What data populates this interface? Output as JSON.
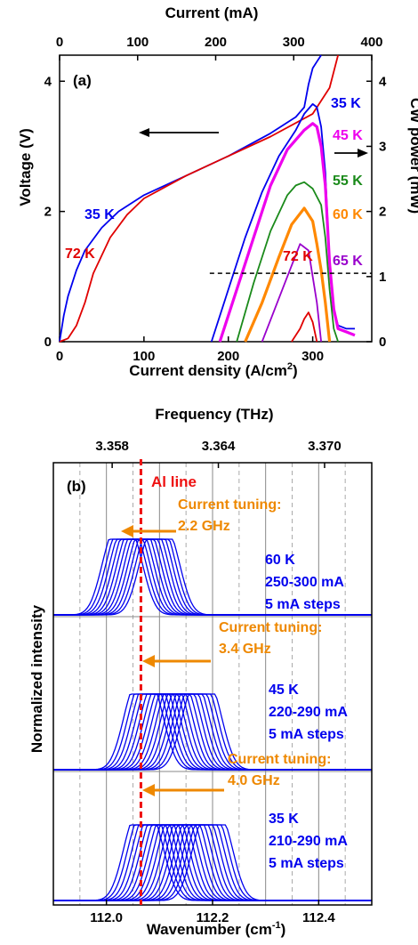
{
  "chart_data": [
    {
      "panel": "(a)",
      "type": "line",
      "top_axis": {
        "label": "Current (mA)",
        "ticks": [
          "0",
          "100",
          "200",
          "300",
          "400"
        ],
        "range": [
          0,
          400
        ]
      },
      "x_axis": {
        "label_main": "Current density  (A/cm",
        "label_sup": "2",
        "label_tail": ")",
        "ticks": [
          "0",
          "100",
          "200",
          "300"
        ],
        "range": [
          0,
          370
        ]
      },
      "y_left": {
        "label": "Voltage (V)",
        "ticks": [
          "0",
          "2",
          "4"
        ],
        "range": [
          0,
          4.4
        ]
      },
      "y_right": {
        "label": "CW power (mW)",
        "ticks": [
          "0",
          "1",
          "2",
          "3",
          "4"
        ],
        "range": [
          0,
          4.4
        ]
      },
      "voltage_series": [
        {
          "name": "35 K",
          "color": "#0000ee",
          "x": [
            0,
            5,
            10,
            20,
            30,
            50,
            70,
            100,
            150,
            200,
            250,
            280,
            290,
            295,
            300,
            305,
            310
          ],
          "y": [
            0,
            0.4,
            0.7,
            1.1,
            1.4,
            1.75,
            2.0,
            2.25,
            2.55,
            2.85,
            3.2,
            3.45,
            3.6,
            3.95,
            4.2,
            4.3,
            4.4
          ]
        },
        {
          "name": "72 K",
          "color": "#e00000",
          "x": [
            0,
            10,
            20,
            30,
            40,
            60,
            80,
            100,
            150,
            200,
            250,
            300,
            320,
            330
          ],
          "y": [
            0,
            0.05,
            0.25,
            0.6,
            1.05,
            1.6,
            1.95,
            2.2,
            2.55,
            2.85,
            3.15,
            3.5,
            3.9,
            4.4
          ]
        }
      ],
      "power_series": [
        {
          "name": "35 K",
          "color": "#0000ee",
          "x": [
            180,
            200,
            220,
            240,
            260,
            280,
            290,
            300,
            305,
            310,
            315,
            320,
            325,
            330,
            340,
            350
          ],
          "y": [
            0,
            0.8,
            1.6,
            2.3,
            2.85,
            3.25,
            3.5,
            3.65,
            3.6,
            3.3,
            2.6,
            1.2,
            0.5,
            0.25,
            0.2,
            0.2
          ]
        },
        {
          "name": "45 K",
          "color": "#ee00ee",
          "x": [
            190,
            210,
            230,
            250,
            270,
            290,
            300,
            305,
            310,
            315,
            320,
            325,
            330,
            340,
            350
          ],
          "y": [
            0,
            0.8,
            1.6,
            2.4,
            2.95,
            3.25,
            3.35,
            3.3,
            3.0,
            2.4,
            1.2,
            0.5,
            0.2,
            0.15,
            0.1
          ]
        },
        {
          "name": "55 K",
          "color": "#1a8a1a",
          "x": [
            210,
            230,
            250,
            270,
            280,
            290,
            300,
            310,
            315,
            320,
            325,
            330
          ],
          "y": [
            0,
            0.9,
            1.7,
            2.25,
            2.4,
            2.45,
            2.35,
            2.1,
            1.6,
            0.8,
            0.2,
            0
          ]
        },
        {
          "name": "60 K",
          "color": "#ff8800",
          "x": [
            220,
            240,
            260,
            275,
            290,
            300,
            305,
            310,
            315,
            320
          ],
          "y": [
            0,
            0.6,
            1.3,
            1.8,
            2.05,
            1.85,
            1.5,
            1.1,
            0.6,
            0
          ]
        },
        {
          "name": "65 K",
          "color": "#9900cc",
          "x": [
            240,
            255,
            270,
            285,
            295,
            300,
            305,
            310
          ],
          "y": [
            0,
            0.5,
            1.0,
            1.5,
            1.4,
            1.0,
            0.6,
            0
          ]
        },
        {
          "name": "72 K",
          "color": "#e00000",
          "x": [
            275,
            285,
            290,
            295,
            300,
            305
          ],
          "y": [
            0,
            0.2,
            0.35,
            0.45,
            0.3,
            0
          ]
        }
      ],
      "series_labels": [
        {
          "text": "35 K",
          "color": "#0000ee"
        },
        {
          "text": "72 K",
          "color": "#e00000"
        },
        {
          "text": "35 K",
          "color": "#0000ee"
        },
        {
          "text": "45 K",
          "color": "#ee00ee"
        },
        {
          "text": "55 K",
          "color": "#1a8a1a"
        },
        {
          "text": "60 K",
          "color": "#ff8800"
        },
        {
          "text": "65 K",
          "color": "#9900cc"
        },
        {
          "text": "72 K",
          "color": "#e00000"
        }
      ],
      "dashed_level_mW": 1.05
    },
    {
      "panel": "(b)",
      "type": "line",
      "top_axis": {
        "label": "Frequency (THz)",
        "ticks": [
          "3.358",
          "3.364",
          "3.370"
        ],
        "values": [
          3.358,
          3.364,
          3.37
        ]
      },
      "x_axis": {
        "label_main": "Wavenumber  (cm",
        "label_sup": "-1",
        "label_tail": ")",
        "ticks": [
          "112.0",
          "112.2",
          "112.4"
        ],
        "range": [
          111.9,
          112.5
        ]
      },
      "y_axis": {
        "label": "Normalized intensity"
      },
      "reference_line": {
        "label": "Al line",
        "x": 112.065,
        "color": "#ee1111"
      },
      "groups": [
        {
          "temperature": "60 K",
          "current_range": "250-300 mA",
          "step": "5 mA steps",
          "tuning_title": "Current tuning:",
          "tuning_value": "2.2 GHz",
          "centers_first": 112.03,
          "centers_last": 112.1,
          "count": 11
        },
        {
          "temperature": "45 K",
          "current_range": "220-290 mA",
          "step": "5 mA steps",
          "tuning_title": "Current tuning:",
          "tuning_value": "3.4 GHz",
          "centers_first": 112.07,
          "centers_last": 112.18,
          "count": 15
        },
        {
          "temperature": "35 K",
          "current_range": "210-290 mA",
          "step": "5 mA steps",
          "tuning_title": "Current tuning:",
          "tuning_value": "4.0 GHz",
          "centers_first": 112.07,
          "centers_last": 112.2,
          "count": 17
        }
      ],
      "trace_color": "#0000ee",
      "annotation_color": "#ee8800"
    }
  ]
}
